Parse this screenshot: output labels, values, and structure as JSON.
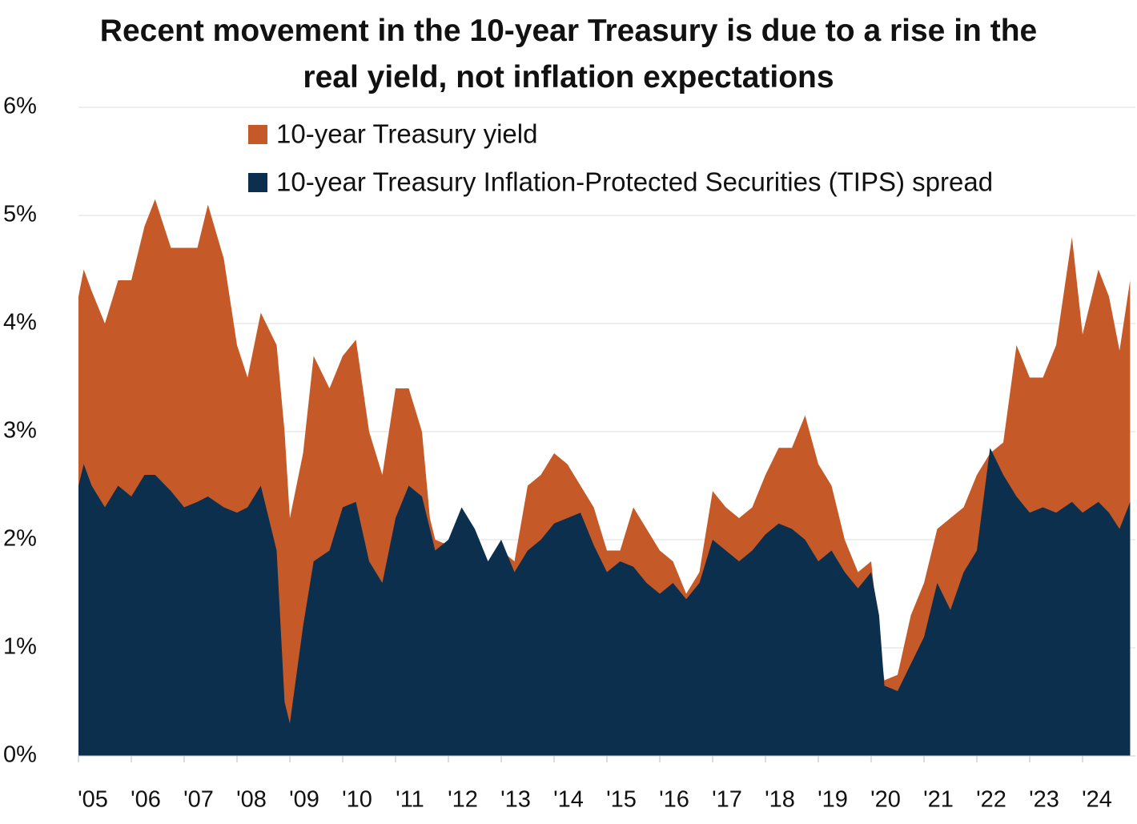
{
  "chart_data": {
    "type": "area",
    "title": "Recent movement in the 10-year Treasury is due to a rise in the real yield, not inflation expectations",
    "x": [
      2005.0,
      2005.1,
      2005.25,
      2005.5,
      2005.75,
      2006.0,
      2006.25,
      2006.45,
      2006.75,
      2007.0,
      2007.25,
      2007.45,
      2007.75,
      2008.0,
      2008.2,
      2008.45,
      2008.75,
      2008.9,
      2009.0,
      2009.25,
      2009.45,
      2009.75,
      2010.0,
      2010.25,
      2010.5,
      2010.75,
      2011.0,
      2011.25,
      2011.5,
      2011.65,
      2011.75,
      2012.0,
      2012.25,
      2012.5,
      2012.75,
      2013.0,
      2013.25,
      2013.5,
      2013.75,
      2014.0,
      2014.25,
      2014.5,
      2014.75,
      2015.0,
      2015.25,
      2015.5,
      2015.75,
      2016.0,
      2016.25,
      2016.5,
      2016.75,
      2017.0,
      2017.25,
      2017.5,
      2017.75,
      2018.0,
      2018.25,
      2018.5,
      2018.75,
      2019.0,
      2019.25,
      2019.5,
      2019.75,
      2020.0,
      2020.15,
      2020.25,
      2020.5,
      2020.75,
      2021.0,
      2021.25,
      2021.5,
      2021.75,
      2022.0,
      2022.25,
      2022.5,
      2022.75,
      2023.0,
      2023.25,
      2023.5,
      2023.8,
      2024.0,
      2024.3,
      2024.5,
      2024.7,
      2024.9
    ],
    "series": [
      {
        "name": "10-year Treasury yield",
        "color": "#c55a28",
        "values": [
          4.25,
          4.5,
          4.3,
          4.0,
          4.4,
          4.4,
          4.9,
          5.15,
          4.7,
          4.7,
          4.7,
          5.1,
          4.6,
          3.8,
          3.5,
          4.1,
          3.8,
          3.0,
          2.2,
          2.8,
          3.7,
          3.4,
          3.7,
          3.85,
          3.0,
          2.6,
          3.4,
          3.4,
          3.0,
          2.2,
          2.0,
          1.95,
          2.1,
          1.55,
          1.7,
          1.9,
          1.8,
          2.5,
          2.6,
          2.8,
          2.7,
          2.5,
          2.3,
          1.9,
          1.9,
          2.3,
          2.1,
          1.9,
          1.8,
          1.5,
          1.7,
          2.45,
          2.3,
          2.2,
          2.3,
          2.6,
          2.85,
          2.85,
          3.15,
          2.7,
          2.5,
          2.0,
          1.7,
          1.8,
          1.1,
          0.7,
          0.75,
          1.3,
          1.6,
          2.1,
          2.2,
          2.3,
          2.6,
          2.8,
          2.9,
          3.8,
          3.5,
          3.5,
          3.8,
          4.8,
          3.9,
          4.5,
          4.25,
          3.75,
          4.4
        ]
      },
      {
        "name": "10-year Treasury Inflation-Protected Securities (TIPS) spread",
        "color": "#0b2f4c",
        "values": [
          2.5,
          2.7,
          2.5,
          2.3,
          2.5,
          2.4,
          2.6,
          2.6,
          2.45,
          2.3,
          2.35,
          2.4,
          2.3,
          2.25,
          2.3,
          2.5,
          1.9,
          0.5,
          0.3,
          1.2,
          1.8,
          1.9,
          2.3,
          2.35,
          1.8,
          1.6,
          2.2,
          2.5,
          2.4,
          2.1,
          1.9,
          2.0,
          2.3,
          2.1,
          1.8,
          2.0,
          1.7,
          1.9,
          2.0,
          2.15,
          2.2,
          2.25,
          1.95,
          1.7,
          1.8,
          1.75,
          1.6,
          1.5,
          1.6,
          1.45,
          1.6,
          2.0,
          1.9,
          1.8,
          1.9,
          2.05,
          2.15,
          2.1,
          2.0,
          1.8,
          1.9,
          1.7,
          1.55,
          1.7,
          1.3,
          0.65,
          0.6,
          0.85,
          1.1,
          1.6,
          1.35,
          1.7,
          1.9,
          2.85,
          2.6,
          2.4,
          2.25,
          2.3,
          2.25,
          2.35,
          2.25,
          2.35,
          2.25,
          2.1,
          2.35
        ]
      }
    ],
    "xlim": [
      2005,
      2025
    ],
    "xticks": [
      {
        "value": 2005,
        "label": "'05"
      },
      {
        "value": 2006,
        "label": "'06"
      },
      {
        "value": 2007,
        "label": "'07"
      },
      {
        "value": 2008,
        "label": "'08"
      },
      {
        "value": 2009,
        "label": "'09"
      },
      {
        "value": 2010,
        "label": "'10"
      },
      {
        "value": 2011,
        "label": "'11"
      },
      {
        "value": 2012,
        "label": "'12"
      },
      {
        "value": 2013,
        "label": "'13"
      },
      {
        "value": 2014,
        "label": "'14"
      },
      {
        "value": 2015,
        "label": "'15"
      },
      {
        "value": 2016,
        "label": "'16"
      },
      {
        "value": 2017,
        "label": "'17"
      },
      {
        "value": 2018,
        "label": "'18"
      },
      {
        "value": 2019,
        "label": "'19"
      },
      {
        "value": 2020,
        "label": "'20"
      },
      {
        "value": 2021,
        "label": "'21"
      },
      {
        "value": 2022,
        "label": "'22"
      },
      {
        "value": 2023,
        "label": "'23"
      },
      {
        "value": 2024,
        "label": "'24"
      }
    ],
    "ylim": [
      0,
      6
    ],
    "yticks": [
      {
        "value": 0,
        "label": "0%"
      },
      {
        "value": 1,
        "label": "1%"
      },
      {
        "value": 2,
        "label": "2%"
      },
      {
        "value": 3,
        "label": "3%"
      },
      {
        "value": 4,
        "label": "4%"
      },
      {
        "value": 5,
        "label": "5%"
      },
      {
        "value": 6,
        "label": "6%"
      }
    ],
    "grid": true,
    "legend": "top-right"
  }
}
